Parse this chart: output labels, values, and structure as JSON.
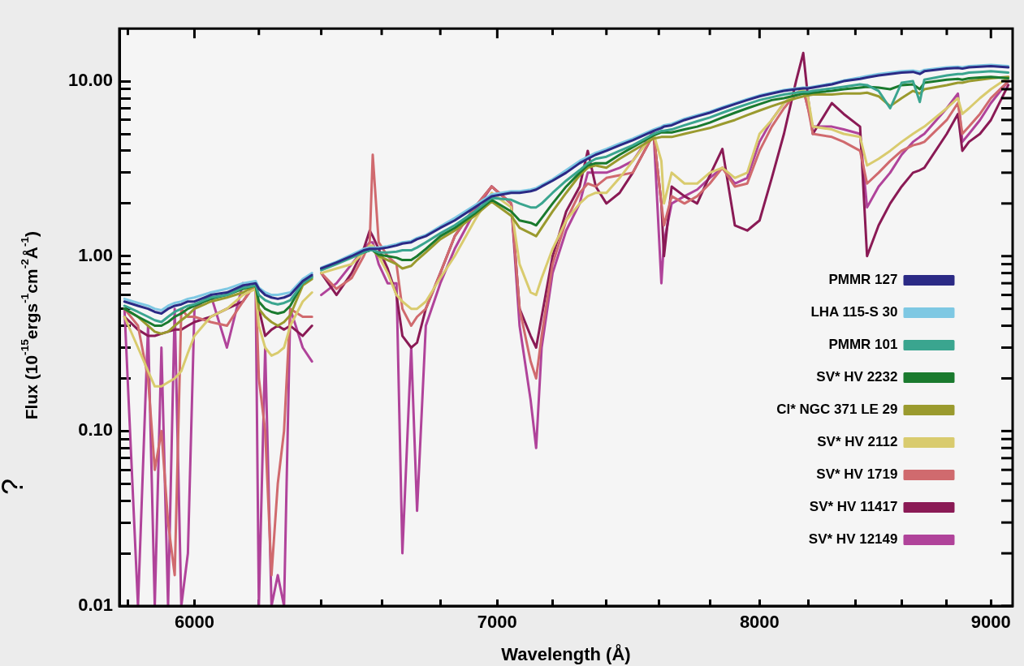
{
  "chart_data": {
    "type": "line",
    "xlabel": "Wavelength (Å)",
    "ylabel": "Flux (10$^{-15}$ergs$^{-1}$cm$^{-2}$Å$^{-1}$)",
    "annotations": [
      "?"
    ],
    "log": "xy",
    "legend": "bottom right",
    "marker": "none",
    "line_style": "solid",
    "xlim": [
      5775,
      9100
    ],
    "ylim": [
      0.01,
      20
    ],
    "xticks": [
      {
        "value": 5800,
        "label": null
      },
      6000,
      {
        "value": 6200,
        "label": null
      },
      {
        "value": 6400,
        "label": null
      },
      {
        "value": 6600,
        "label": null
      },
      {
        "value": 6800,
        "label": null
      },
      7000,
      {
        "value": 7200,
        "label": null
      },
      {
        "value": 7400,
        "label": null
      },
      {
        "value": 7600,
        "label": null
      },
      {
        "value": 7800,
        "label": null
      },
      8000,
      {
        "value": 8200,
        "label": null
      },
      {
        "value": 8400,
        "label": null
      },
      {
        "value": 8600,
        "label": null
      },
      {
        "value": 8800,
        "label": null
      },
      9000
    ],
    "yticks": [
      {
        "value": 0.01,
        "label": "0.01"
      },
      {
        "value": 0.02,
        "label": null
      },
      {
        "value": 0.03,
        "label": null
      },
      {
        "value": 0.04,
        "label": null
      },
      {
        "value": 0.05,
        "label": null
      },
      {
        "value": 0.06,
        "label": null
      },
      {
        "value": 0.07,
        "label": null
      },
      {
        "value": 0.08,
        "label": null
      },
      {
        "value": 0.09,
        "label": null
      },
      {
        "value": 0.1,
        "label": "0.10"
      },
      {
        "value": 0.2,
        "label": null
      },
      {
        "value": 0.3,
        "label": null
      },
      {
        "value": 0.4,
        "label": null
      },
      {
        "value": 0.5,
        "label": null
      },
      {
        "value": 0.6,
        "label": null
      },
      {
        "value": 0.7,
        "label": null
      },
      {
        "value": 0.8,
        "label": null
      },
      {
        "value": 0.9,
        "label": null
      },
      {
        "value": 1,
        "label": "1.00"
      },
      {
        "value": 2,
        "label": null
      },
      {
        "value": 3,
        "label": null
      },
      {
        "value": 4,
        "label": null
      },
      {
        "value": 5,
        "label": null
      },
      {
        "value": 6,
        "label": null
      },
      {
        "value": 7,
        "label": null
      },
      {
        "value": 8,
        "label": null
      },
      {
        "value": 9,
        "label": null
      },
      {
        "value": 10,
        "label": "10.00"
      }
    ],
    "x": [
      5790,
      5830,
      5860,
      5880,
      5900,
      5920,
      5940,
      5960,
      5980,
      6000,
      6050,
      6100,
      6150,
      6190,
      6200,
      6220,
      6240,
      6260,
      6280,
      6300,
      6340,
      6370,
      6385,
      6400,
      6450,
      6500,
      6540,
      6560,
      6570,
      6590,
      6620,
      6650,
      6670,
      6700,
      6720,
      6750,
      6800,
      6850,
      6920,
      6980,
      7050,
      7080,
      7120,
      7140,
      7160,
      7200,
      7250,
      7300,
      7330,
      7360,
      7400,
      7450,
      7500,
      7580,
      7610,
      7620,
      7650,
      7700,
      7750,
      7800,
      7850,
      7900,
      7950,
      8000,
      8050,
      8100,
      8150,
      8180,
      8200,
      8220,
      8300,
      8350,
      8420,
      8450,
      8500,
      8550,
      8600,
      8650,
      8680,
      8700,
      8800,
      8850,
      8870,
      8900,
      8950,
      9000,
      9080
    ],
    "series": [
      {
        "name": "PMMR 127",
        "color": "#2b2a85",
        "values": [
          0.55,
          0.52,
          0.5,
          0.48,
          0.47,
          0.5,
          0.52,
          0.53,
          0.55,
          0.55,
          0.6,
          0.62,
          0.68,
          0.7,
          0.65,
          0.6,
          0.58,
          0.57,
          0.58,
          0.6,
          0.72,
          0.78,
          null,
          0.85,
          0.92,
          1.0,
          1.08,
          1.1,
          1.1,
          1.1,
          1.12,
          1.15,
          1.18,
          1.2,
          1.25,
          1.3,
          1.45,
          1.6,
          1.9,
          2.2,
          2.3,
          2.3,
          2.35,
          2.4,
          2.5,
          2.7,
          3.0,
          3.4,
          3.6,
          3.8,
          4.0,
          4.3,
          4.6,
          5.2,
          5.4,
          5.5,
          5.6,
          6.0,
          6.3,
          6.6,
          7.0,
          7.4,
          7.8,
          8.2,
          8.5,
          8.8,
          9.0,
          9.1,
          9.1,
          9.2,
          9.6,
          10.0,
          10.3,
          10.5,
          10.8,
          11.0,
          11.2,
          11.3,
          11.0,
          11.4,
          11.8,
          11.9,
          11.8,
          12.0,
          12.1,
          12.2,
          12.0
        ]
      },
      {
        "name": "LHA 115-S 30",
        "color": "#7ec8e3",
        "values": [
          0.57,
          0.54,
          0.52,
          0.5,
          0.49,
          0.52,
          0.54,
          0.55,
          0.57,
          0.58,
          0.62,
          0.65,
          0.7,
          0.72,
          0.66,
          0.62,
          0.6,
          0.6,
          0.61,
          0.62,
          0.74,
          0.8,
          null,
          0.86,
          0.93,
          1.02,
          1.1,
          1.12,
          1.12,
          1.12,
          1.14,
          1.17,
          1.2,
          1.22,
          1.27,
          1.32,
          1.48,
          1.65,
          1.95,
          2.25,
          2.35,
          2.35,
          2.4,
          2.45,
          2.55,
          2.75,
          3.1,
          3.5,
          3.7,
          3.9,
          4.1,
          4.4,
          4.7,
          5.3,
          5.5,
          5.6,
          5.7,
          6.1,
          6.4,
          6.7,
          7.1,
          7.5,
          7.9,
          8.3,
          8.6,
          8.9,
          9.1,
          9.2,
          9.2,
          9.3,
          9.7,
          10.1,
          10.5,
          10.7,
          11.0,
          11.2,
          11.4,
          11.5,
          11.3,
          11.6,
          12.0,
          12.1,
          12.0,
          12.2,
          12.3,
          12.4,
          12.2
        ]
      },
      {
        "name": "PMMR 101",
        "color": "#3aa58f",
        "values": [
          0.52,
          0.48,
          0.45,
          0.43,
          0.42,
          0.45,
          0.48,
          0.5,
          0.52,
          0.53,
          0.58,
          0.6,
          0.66,
          0.68,
          0.6,
          0.56,
          0.54,
          0.53,
          0.54,
          0.56,
          0.7,
          0.76,
          null,
          0.83,
          0.9,
          0.98,
          1.05,
          1.08,
          1.08,
          1.05,
          1.05,
          1.06,
          1.08,
          1.08,
          1.12,
          1.2,
          1.35,
          1.5,
          1.8,
          2.15,
          2.1,
          2.0,
          1.9,
          1.9,
          2.0,
          2.3,
          2.7,
          3.1,
          3.4,
          3.6,
          3.7,
          4.0,
          4.3,
          5.0,
          5.2,
          5.2,
          5.3,
          5.6,
          5.9,
          6.2,
          6.6,
          7.0,
          7.4,
          7.8,
          8.1,
          8.4,
          8.6,
          8.7,
          8.7,
          8.8,
          9.1,
          9.3,
          9.6,
          9.5,
          8.8,
          7.0,
          9.8,
          10.0,
          7.6,
          10.2,
          10.8,
          11.0,
          11.0,
          11.2,
          11.3,
          11.4,
          11.2
        ]
      },
      {
        "name": "SV* HV 2232",
        "color": "#1a7a2e",
        "values": [
          0.5,
          0.45,
          0.42,
          0.4,
          0.4,
          0.42,
          0.45,
          0.47,
          0.5,
          0.52,
          0.57,
          0.6,
          0.65,
          0.68,
          0.55,
          0.5,
          0.48,
          0.47,
          0.48,
          0.52,
          0.7,
          0.76,
          null,
          0.85,
          0.92,
          1.0,
          1.05,
          1.08,
          1.08,
          1.02,
          1.0,
          0.98,
          0.95,
          0.95,
          1.0,
          1.1,
          1.3,
          1.45,
          1.75,
          2.1,
          1.8,
          1.6,
          1.55,
          1.5,
          1.65,
          2.0,
          2.5,
          3.0,
          3.3,
          3.4,
          3.4,
          3.8,
          4.2,
          4.9,
          5.1,
          5.1,
          5.1,
          5.3,
          5.5,
          5.8,
          6.2,
          6.6,
          7.0,
          7.4,
          7.8,
          8.0,
          8.3,
          8.5,
          8.5,
          8.6,
          8.8,
          9.0,
          9.2,
          9.3,
          9.2,
          9.0,
          9.5,
          9.6,
          9.0,
          9.8,
          10.2,
          10.3,
          10.2,
          10.4,
          10.5,
          10.6,
          10.4
        ]
      },
      {
        "name": "Cl* NGC 371 LE 29",
        "color": "#9a9a2e",
        "values": [
          0.5,
          0.45,
          0.4,
          0.37,
          0.36,
          0.37,
          0.4,
          0.43,
          0.46,
          0.5,
          0.55,
          0.58,
          0.62,
          0.68,
          0.5,
          0.45,
          0.42,
          0.4,
          0.42,
          0.46,
          0.68,
          0.74,
          null,
          0.85,
          0.92,
          1.0,
          1.05,
          1.08,
          1.08,
          1.0,
          0.95,
          0.9,
          0.85,
          0.88,
          0.95,
          1.05,
          1.25,
          1.4,
          1.7,
          2.05,
          1.7,
          1.45,
          1.35,
          1.3,
          1.45,
          1.8,
          2.3,
          2.9,
          3.2,
          3.3,
          3.2,
          3.6,
          4.0,
          4.7,
          4.8,
          4.8,
          4.8,
          5.0,
          5.2,
          5.4,
          5.7,
          6.0,
          6.4,
          6.8,
          7.2,
          7.6,
          8.0,
          8.2,
          8.3,
          8.4,
          8.4,
          8.5,
          8.5,
          8.6,
          8.2,
          7.2,
          8.0,
          8.8,
          8.5,
          9.0,
          9.5,
          9.8,
          9.8,
          10.0,
          10.2,
          10.4,
          10.6
        ]
      },
      {
        "name": "SV* HV 2112",
        "color": "#d9cb6e",
        "values": [
          0.45,
          0.3,
          0.22,
          0.18,
          0.18,
          0.19,
          0.2,
          0.22,
          0.28,
          0.35,
          0.45,
          0.5,
          0.6,
          0.65,
          0.4,
          0.3,
          0.27,
          0.28,
          0.3,
          0.4,
          0.55,
          0.62,
          null,
          0.8,
          0.85,
          0.9,
          1.05,
          1.15,
          1.15,
          1.0,
          0.8,
          0.6,
          0.55,
          0.5,
          0.5,
          0.55,
          0.75,
          1.0,
          1.6,
          2.3,
          1.9,
          0.9,
          0.62,
          0.6,
          0.75,
          1.1,
          1.6,
          2.0,
          2.2,
          2.3,
          2.3,
          2.8,
          3.5,
          5.0,
          3.5,
          2.0,
          3.0,
          2.6,
          2.6,
          3.0,
          3.2,
          2.8,
          3.0,
          5.0,
          6.0,
          7.5,
          8.5,
          9.0,
          8.0,
          5.5,
          5.3,
          5.0,
          4.8,
          3.3,
          3.6,
          4.0,
          4.5,
          5.0,
          5.3,
          5.5,
          7.0,
          8.0,
          6.5,
          7.0,
          8.0,
          9.0,
          10.5
        ]
      },
      {
        "name": "SV* HV 1719",
        "color": "#d06a6e",
        "values": [
          0.5,
          0.4,
          0.2,
          0.06,
          0.1,
          0.03,
          0.015,
          0.5,
          0.45,
          0.45,
          0.42,
          0.4,
          0.55,
          0.7,
          0.2,
          0.1,
          0.015,
          0.05,
          0.1,
          0.5,
          0.45,
          0.45,
          null,
          0.8,
          0.65,
          0.75,
          1.0,
          1.2,
          3.8,
          1.2,
          1.0,
          0.9,
          0.5,
          0.4,
          0.45,
          0.5,
          0.8,
          1.3,
          1.9,
          2.5,
          2.0,
          0.5,
          0.25,
          0.2,
          0.35,
          0.9,
          1.6,
          2.3,
          2.6,
          2.5,
          2.8,
          2.9,
          3.0,
          5.0,
          2.0,
          1.5,
          2.2,
          2.0,
          2.2,
          2.6,
          3.2,
          2.5,
          2.6,
          4.0,
          5.5,
          7.0,
          8.5,
          9.0,
          7.0,
          5.0,
          4.8,
          4.5,
          4.0,
          2.6,
          3.0,
          3.5,
          4.0,
          4.3,
          4.4,
          4.5,
          6.0,
          7.5,
          5.0,
          5.5,
          6.5,
          8.0,
          10.0
        ]
      },
      {
        "name": "SV* HV 11417",
        "color": "#8a1a55",
        "values": [
          0.45,
          0.38,
          0.35,
          0.35,
          0.36,
          0.37,
          0.38,
          0.38,
          0.4,
          0.42,
          0.45,
          0.5,
          0.55,
          0.7,
          0.5,
          0.35,
          0.38,
          0.4,
          0.38,
          0.4,
          0.35,
          0.4,
          null,
          0.8,
          0.6,
          0.8,
          1.1,
          1.4,
          1.3,
          1.1,
          0.85,
          0.6,
          0.35,
          0.3,
          0.32,
          0.5,
          0.8,
          1.3,
          1.9,
          2.5,
          2.0,
          0.5,
          0.35,
          0.3,
          0.45,
          1.0,
          1.8,
          2.5,
          4.0,
          2.5,
          2.0,
          2.3,
          3.0,
          5.0,
          2.0,
          1.0,
          2.5,
          2.2,
          2.0,
          2.9,
          4.1,
          1.5,
          1.4,
          1.6,
          2.8,
          5.0,
          10.0,
          14.5,
          8.0,
          5.0,
          7.5,
          6.5,
          5.5,
          1.0,
          1.5,
          2.0,
          2.5,
          3.0,
          3.1,
          3.2,
          5.0,
          6.5,
          4.0,
          4.5,
          5.0,
          6.0,
          9.5
        ]
      },
      {
        "name": "SV* HV 12149",
        "color": "#b0439a",
        "values": [
          0.5,
          0.01,
          0.4,
          0.01,
          0.3,
          0.01,
          0.5,
          0.01,
          0.02,
          0.5,
          0.6,
          0.3,
          0.7,
          0.65,
          0.01,
          0.3,
          0.01,
          0.015,
          0.01,
          0.5,
          0.3,
          0.25,
          null,
          0.6,
          0.7,
          0.9,
          1.1,
          1.2,
          1.2,
          0.9,
          0.7,
          0.7,
          0.02,
          0.3,
          0.035,
          0.4,
          0.7,
          1.1,
          1.8,
          2.5,
          2.0,
          0.4,
          0.15,
          0.08,
          0.3,
          0.8,
          1.4,
          2.0,
          3.0,
          3.0,
          3.0,
          3.2,
          3.5,
          5.2,
          0.7,
          1.2,
          2.0,
          2.2,
          2.4,
          2.8,
          3.2,
          2.6,
          2.8,
          4.5,
          6.0,
          7.5,
          8.5,
          9.0,
          7.0,
          5.5,
          5.5,
          5.3,
          5.0,
          1.9,
          2.5,
          3.0,
          3.8,
          4.5,
          4.8,
          5.0,
          7.0,
          8.5,
          4.5,
          5.0,
          6.0,
          7.5,
          10.0
        ]
      }
    ]
  }
}
